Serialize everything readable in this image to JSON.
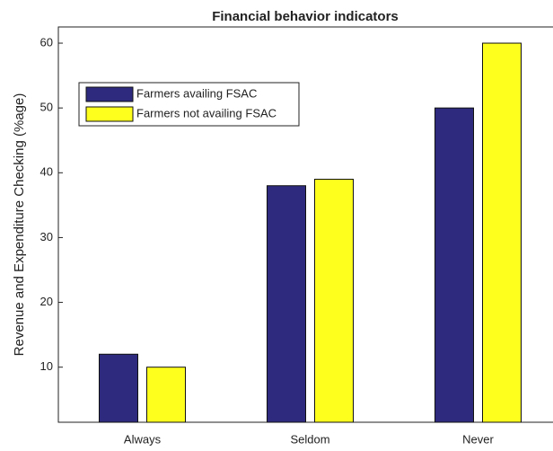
{
  "chart_data": {
    "type": "bar",
    "title": "Financial behavior indicators",
    "ylabel": "Revenue and Expenditure Checking (%age)",
    "categories": [
      "Always",
      "Seldom",
      "Never"
    ],
    "series": [
      {
        "name": "Farmers availing FSAC",
        "color": "#2e2a7e",
        "values": [
          12,
          38,
          50
        ]
      },
      {
        "name": "Farmers not availing FSAC",
        "color": "#ffff1e",
        "values": [
          10,
          39,
          60
        ]
      }
    ],
    "ylim": [
      1.5,
      62.5
    ],
    "yticks": [
      10,
      20,
      30,
      40,
      50,
      60
    ],
    "legend": "upper left"
  }
}
